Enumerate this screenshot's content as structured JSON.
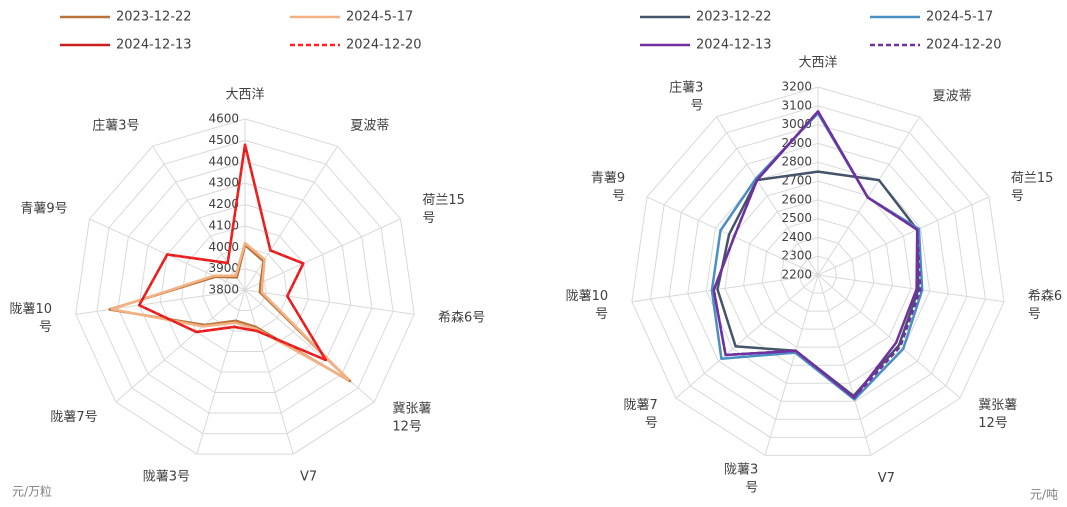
{
  "chart_data": [
    {
      "type": "radar",
      "categories": [
        "大西洋",
        "夏波蒂",
        "荷兰15\n号",
        "希森6号",
        "冀张薯\n12号",
        "V7",
        "陇薯3号",
        "陇薯7号",
        "陇薯10\n号",
        "青薯9号",
        "庄薯3号"
      ],
      "series": [
        {
          "name": "2023-12-22",
          "color": "#b8733a",
          "line_style": "solid",
          "values": [
            4010,
            3960,
            3880,
            3870,
            4450,
            3980,
            3950,
            4050,
            4440,
            3950,
            3870
          ]
        },
        {
          "name": "2024-5-17",
          "color": "#f4b183",
          "line_style": "solid",
          "values": [
            4020,
            3970,
            3890,
            3880,
            4440,
            3990,
            3960,
            4060,
            4430,
            3960,
            3880
          ]
        },
        {
          "name": "2024-12-13",
          "color": "#c82020",
          "line_style": "solid",
          "values": [
            4480,
            4020,
            4100,
            4000,
            4300,
            4000,
            3980,
            4100,
            4300,
            4200,
            3950
          ]
        },
        {
          "name": "2024-12-20",
          "color": "#ff2020",
          "line_style": "dashed",
          "values": [
            4480,
            4020,
            4100,
            4000,
            4300,
            4000,
            3980,
            4100,
            4300,
            4200,
            3950
          ]
        }
      ],
      "ylim": [
        3800,
        4600
      ],
      "yticks": [
        3800,
        3900,
        4000,
        4100,
        4200,
        4300,
        4400,
        4500,
        4600
      ],
      "grid": true,
      "unit": "元/万粒"
    },
    {
      "type": "radar",
      "categories": [
        "大西洋",
        "夏波蒂",
        "荷兰15\n号",
        "希森6\n号",
        "冀张薯\n12号",
        "V7",
        "陇薯3\n号",
        "陇薯7\n号",
        "陇薯10\n号",
        "青薯9\n号",
        "庄薯3\n号"
      ],
      "series": [
        {
          "name": "2023-12-22",
          "color": "#44546a",
          "line_style": "solid",
          "values": [
            2750,
            2800,
            2780,
            2740,
            2770,
            2870,
            2620,
            2780,
            2740,
            2720,
            2800
          ]
        },
        {
          "name": "2024-5-17",
          "color": "#4a8fc4",
          "line_style": "solid",
          "values": [
            3060,
            2690,
            2790,
            2760,
            2800,
            2890,
            2630,
            2880,
            2770,
            2770,
            2810
          ]
        },
        {
          "name": "2024-12-13",
          "color": "#7030a0",
          "line_style": "solid",
          "values": [
            3070,
            2690,
            2780,
            2730,
            2750,
            2880,
            2620,
            2850,
            2760,
            2690,
            2800
          ]
        },
        {
          "name": "2024-12-20",
          "color": "#7030a0",
          "line_style": "dashed",
          "values": [
            3070,
            2690,
            2780,
            2750,
            2780,
            2880,
            2620,
            2850,
            2760,
            2690,
            2800
          ]
        }
      ],
      "ylim": [
        2200,
        3200
      ],
      "yticks": [
        2200,
        2300,
        2400,
        2500,
        2600,
        2700,
        2800,
        2900,
        3000,
        3100,
        3200
      ],
      "grid": true,
      "unit": "元/吨"
    }
  ]
}
